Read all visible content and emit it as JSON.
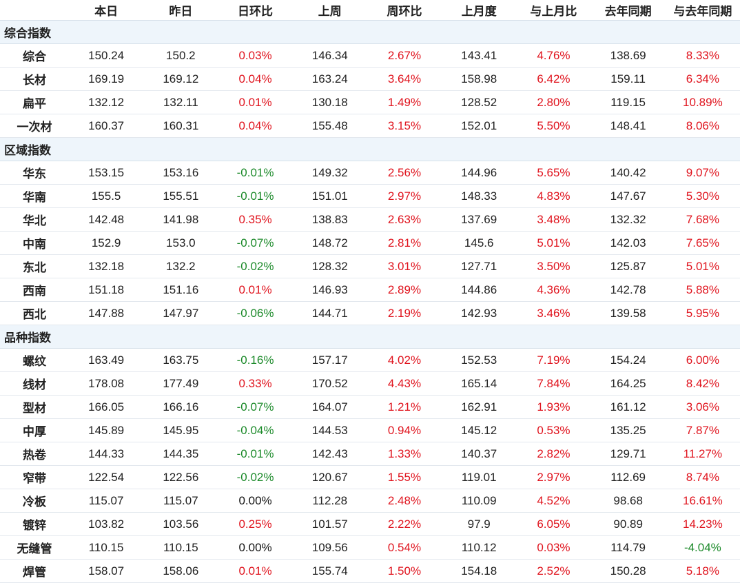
{
  "header": {
    "columns": [
      "本日",
      "昨日",
      "日环比",
      "上周",
      "周环比",
      "上月度",
      "与上月比",
      "去年同期",
      "与去年同期"
    ]
  },
  "sections": [
    {
      "title": "综合指数",
      "rows": [
        {
          "name": "综合",
          "values": [
            "150.24",
            "150.2",
            "0.03%",
            "146.34",
            "2.67%",
            "143.41",
            "4.76%",
            "138.69",
            "8.33%"
          ]
        },
        {
          "name": "长材",
          "values": [
            "169.19",
            "169.12",
            "0.04%",
            "163.24",
            "3.64%",
            "158.98",
            "6.42%",
            "159.11",
            "6.34%"
          ]
        },
        {
          "name": "扁平",
          "values": [
            "132.12",
            "132.11",
            "0.01%",
            "130.18",
            "1.49%",
            "128.52",
            "2.80%",
            "119.15",
            "10.89%"
          ]
        },
        {
          "name": "一次材",
          "values": [
            "160.37",
            "160.31",
            "0.04%",
            "155.48",
            "3.15%",
            "152.01",
            "5.50%",
            "148.41",
            "8.06%"
          ]
        }
      ]
    },
    {
      "title": "区域指数",
      "rows": [
        {
          "name": "华东",
          "values": [
            "153.15",
            "153.16",
            "-0.01%",
            "149.32",
            "2.56%",
            "144.96",
            "5.65%",
            "140.42",
            "9.07%"
          ]
        },
        {
          "name": "华南",
          "values": [
            "155.5",
            "155.51",
            "-0.01%",
            "151.01",
            "2.97%",
            "148.33",
            "4.83%",
            "147.67",
            "5.30%"
          ]
        },
        {
          "name": "华北",
          "values": [
            "142.48",
            "141.98",
            "0.35%",
            "138.83",
            "2.63%",
            "137.69",
            "3.48%",
            "132.32",
            "7.68%"
          ]
        },
        {
          "name": "中南",
          "values": [
            "152.9",
            "153.0",
            "-0.07%",
            "148.72",
            "2.81%",
            "145.6",
            "5.01%",
            "142.03",
            "7.65%"
          ]
        },
        {
          "name": "东北",
          "values": [
            "132.18",
            "132.2",
            "-0.02%",
            "128.32",
            "3.01%",
            "127.71",
            "3.50%",
            "125.87",
            "5.01%"
          ]
        },
        {
          "name": "西南",
          "values": [
            "151.18",
            "151.16",
            "0.01%",
            "146.93",
            "2.89%",
            "144.86",
            "4.36%",
            "142.78",
            "5.88%"
          ]
        },
        {
          "name": "西北",
          "values": [
            "147.88",
            "147.97",
            "-0.06%",
            "144.71",
            "2.19%",
            "142.93",
            "3.46%",
            "139.58",
            "5.95%"
          ]
        }
      ]
    },
    {
      "title": "品种指数",
      "rows": [
        {
          "name": "螺纹",
          "values": [
            "163.49",
            "163.75",
            "-0.16%",
            "157.17",
            "4.02%",
            "152.53",
            "7.19%",
            "154.24",
            "6.00%"
          ]
        },
        {
          "name": "线材",
          "values": [
            "178.08",
            "177.49",
            "0.33%",
            "170.52",
            "4.43%",
            "165.14",
            "7.84%",
            "164.25",
            "8.42%"
          ]
        },
        {
          "name": "型材",
          "values": [
            "166.05",
            "166.16",
            "-0.07%",
            "164.07",
            "1.21%",
            "162.91",
            "1.93%",
            "161.12",
            "3.06%"
          ]
        },
        {
          "name": "中厚",
          "values": [
            "145.89",
            "145.95",
            "-0.04%",
            "144.53",
            "0.94%",
            "145.12",
            "0.53%",
            "135.25",
            "7.87%"
          ]
        },
        {
          "name": "热卷",
          "values": [
            "144.33",
            "144.35",
            "-0.01%",
            "142.43",
            "1.33%",
            "140.37",
            "2.82%",
            "129.71",
            "11.27%"
          ]
        },
        {
          "name": "窄带",
          "values": [
            "122.54",
            "122.56",
            "-0.02%",
            "120.67",
            "1.55%",
            "119.01",
            "2.97%",
            "112.69",
            "8.74%"
          ]
        },
        {
          "name": "冷板",
          "values": [
            "115.07",
            "115.07",
            "0.00%",
            "112.28",
            "2.48%",
            "110.09",
            "4.52%",
            "98.68",
            "16.61%"
          ]
        },
        {
          "name": "镀锌",
          "values": [
            "103.82",
            "103.56",
            "0.25%",
            "101.57",
            "2.22%",
            "97.9",
            "6.05%",
            "90.89",
            "14.23%"
          ]
        },
        {
          "name": "无缝管",
          "values": [
            "110.15",
            "110.15",
            "0.00%",
            "109.56",
            "0.54%",
            "110.12",
            "0.03%",
            "114.79",
            "-4.04%"
          ]
        },
        {
          "name": "焊管",
          "values": [
            "158.07",
            "158.06",
            "0.01%",
            "155.74",
            "1.50%",
            "154.18",
            "2.52%",
            "150.28",
            "5.18%"
          ]
        }
      ]
    }
  ]
}
